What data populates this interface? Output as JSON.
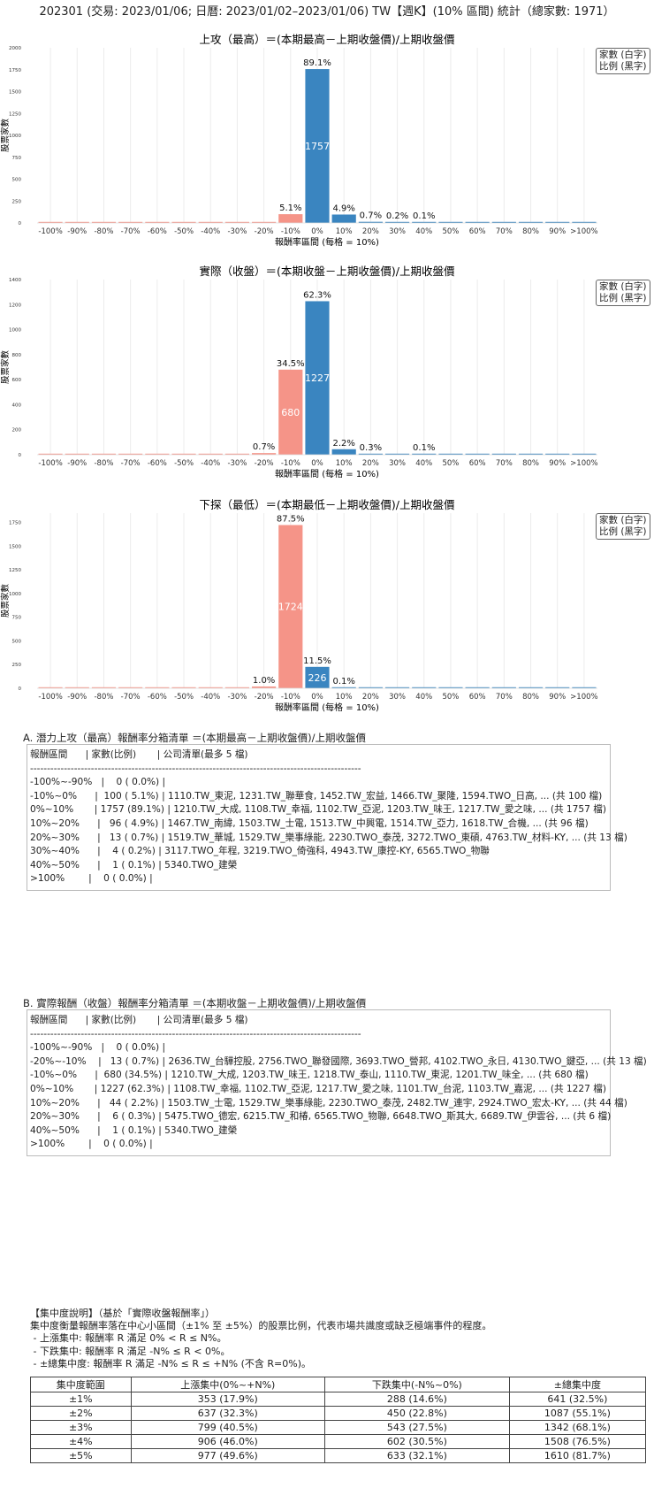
{
  "page_title": "202301 (交易: 2023/01/06; 日曆: 2023/01/02–2023/01/06) TW【週K】(10% 區間) 統計（總家數: 1971）",
  "legend": {
    "line1": "家數 (白字)",
    "line2": "比例 (黑字)"
  },
  "colors": {
    "positive": "#3a85c0",
    "negative": "#f59488"
  },
  "chart_data": [
    {
      "type": "bar",
      "title": "上攻（最高）＝(本期最高－上期收盤價)/上期收盤價",
      "xlabel": "報酬率區間 (每格 = 10%)",
      "ylabel": "股票家數",
      "categories": [
        "-100%",
        "-90%",
        "-80%",
        "-70%",
        "-60%",
        "-50%",
        "-40%",
        "-30%",
        "-20%",
        "-10%",
        "0%",
        "10%",
        "20%",
        "30%",
        "40%",
        "50%",
        "60%",
        "70%",
        "80%",
        "90%",
        ">100%"
      ],
      "values": [
        0,
        0,
        0,
        0,
        0,
        0,
        0,
        0,
        0,
        100,
        1757,
        96,
        13,
        4,
        1,
        0,
        0,
        0,
        0,
        0,
        0
      ],
      "labels": [
        "",
        "",
        "",
        "",
        "",
        "",
        "",
        "",
        "",
        "5.1%",
        "89.1%",
        "4.9%",
        "0.7%",
        "0.2%",
        "0.1%",
        "",
        "",
        "",
        "",
        "",
        ""
      ],
      "yticks": [
        0,
        250,
        500,
        750,
        1000,
        1250,
        1500,
        1750,
        2000
      ],
      "ylim": [
        0,
        2000
      ],
      "grid": "vertical"
    },
    {
      "type": "bar",
      "title": "實際（收盤）＝(本期收盤－上期收盤價)/上期收盤價",
      "xlabel": "報酬率區間 (每格 = 10%)",
      "ylabel": "股票家數",
      "categories": [
        "-100%",
        "-90%",
        "-80%",
        "-70%",
        "-60%",
        "-50%",
        "-40%",
        "-30%",
        "-20%",
        "-10%",
        "0%",
        "10%",
        "20%",
        "30%",
        "40%",
        "50%",
        "60%",
        "70%",
        "80%",
        "90%",
        ">100%"
      ],
      "values": [
        0,
        0,
        0,
        0,
        0,
        0,
        0,
        0,
        13,
        680,
        1227,
        44,
        6,
        0,
        1,
        0,
        0,
        0,
        0,
        0,
        0
      ],
      "labels": [
        "",
        "",
        "",
        "",
        "",
        "",
        "",
        "",
        "0.7%",
        "34.5%",
        "62.3%",
        "2.2%",
        "0.3%",
        "",
        "0.1%",
        "",
        "",
        "",
        "",
        "",
        ""
      ],
      "yticks": [
        0,
        200,
        400,
        600,
        800,
        1000,
        1200,
        1400
      ],
      "ylim": [
        0,
        1400
      ],
      "grid": "vertical"
    },
    {
      "type": "bar",
      "title": "下探（最低）＝(本期最低－上期收盤價)/上期收盤價",
      "xlabel": "報酬率區間 (每格 = 10%)",
      "ylabel": "股票家數",
      "categories": [
        "-100%",
        "-90%",
        "-80%",
        "-70%",
        "-60%",
        "-50%",
        "-40%",
        "-30%",
        "-20%",
        "-10%",
        "0%",
        "10%",
        "20%",
        "30%",
        "40%",
        "50%",
        "60%",
        "70%",
        "80%",
        "90%",
        ">100%"
      ],
      "values": [
        0,
        0,
        0,
        0,
        0,
        0,
        0,
        0,
        19,
        1724,
        226,
        2,
        0,
        0,
        0,
        0,
        0,
        0,
        0,
        0,
        0
      ],
      "labels": [
        "",
        "",
        "",
        "",
        "",
        "",
        "",
        "",
        "1.0%",
        "87.5%",
        "11.5%",
        "0.1%",
        "",
        "",
        "",
        "",
        "",
        "",
        "",
        "",
        ""
      ],
      "yticks": [
        0,
        250,
        500,
        750,
        1000,
        1250,
        1500,
        1750
      ],
      "ylim": [
        0,
        1850
      ],
      "grid": "vertical"
    }
  ],
  "section_a": {
    "title": "A. 潛力上攻（最高）報酬率分箱清單 ＝(本期最高－上期收盤價)/上期收盤價",
    "rows": [
      "報酬區間      | 家數(比例)       | 公司清單(最多 5 檔)",
      "--------------------------------------------------------------------------------------------------",
      "-100%~-90%   |    0 ( 0.0%) |",
      "-10%~0%      |  100 ( 5.1%) | 1110.TW_東泥, 1231.TW_聯華食, 1452.TW_宏益, 1466.TW_聚隆, 1594.TWO_日高, ... (共 100 檔)",
      "0%~10%       | 1757 (89.1%) | 1210.TW_大成, 1108.TW_幸福, 1102.TW_亞泥, 1203.TW_味王, 1217.TW_愛之味, ... (共 1757 檔)",
      "10%~20%      |   96 ( 4.9%) | 1467.TW_南緯, 1503.TW_士電, 1513.TW_中興電, 1514.TW_亞力, 1618.TW_合機, ... (共 96 檔)",
      "20%~30%      |   13 ( 0.7%) | 1519.TW_華城, 1529.TW_樂事綠能, 2230.TWO_泰茂, 3272.TWO_東碩, 4763.TW_材料-KY, ... (共 13 檔)",
      "30%~40%      |    4 ( 0.2%) | 3117.TWO_年程, 3219.TWO_倚強科, 4943.TW_康控-KY, 6565.TWO_物聯",
      "40%~50%      |    1 ( 0.1%) | 5340.TWO_建榮",
      ">100%        |    0 ( 0.0%) |"
    ]
  },
  "section_b": {
    "title": "B. 實際報酬（收盤）報酬率分箱清單 ＝(本期收盤－上期收盤價)/上期收盤價",
    "rows": [
      "報酬區間      | 家數(比例)       | 公司清單(最多 5 檔)",
      "--------------------------------------------------------------------------------------------------",
      "-100%~-90%   |    0 ( 0.0%) |",
      "-20%~-10%    |   13 ( 0.7%) | 2636.TW_台驊控股, 2756.TWO_聯發國際, 3693.TWO_營邦, 4102.TWO_永日, 4130.TWO_鍵亞, ... (共 13 檔)",
      "-10%~0%      |  680 (34.5%) | 1210.TW_大成, 1203.TW_味王, 1218.TW_泰山, 1110.TW_東泥, 1201.TW_味全, ... (共 680 檔)",
      "0%~10%       | 1227 (62.3%) | 1108.TW_幸福, 1102.TW_亞泥, 1217.TW_愛之味, 1101.TW_台泥, 1103.TW_嘉泥, ... (共 1227 檔)",
      "10%~20%      |   44 ( 2.2%) | 1503.TW_士電, 1529.TW_樂事綠能, 2230.TWO_泰茂, 2482.TW_連宇, 2924.TWO_宏太-KY, ... (共 44 檔)",
      "20%~30%      |    6 ( 0.3%) | 5475.TWO_德宏, 6215.TW_和椿, 6565.TWO_物聯, 6648.TWO_斯其大, 6689.TW_伊雲谷, ... (共 6 檔)",
      "40%~50%      |    1 ( 0.1%) | 5340.TWO_建榮",
      ">100%        |    0 ( 0.0%) |"
    ]
  },
  "concentration": {
    "heading": "【集中度說明】（基於「實際收盤報酬率」）",
    "lines": [
      "集中度衡量報酬率落在中心小區間（±1% 至 ±5%）的股票比例，代表市場共識度或缺乏極端事件的程度。",
      " - 上漲集中: 報酬率 R 滿足 0% < R ≤ N%。",
      " - 下跌集中: 報酬率 R 滿足 -N% ≤ R < 0%。",
      " - ±總集中度: 報酬率 R 滿足 -N% ≤ R ≤ +N% (不含 R=0%)。"
    ],
    "table": {
      "headers": [
        "集中度範圍",
        "上漲集中(0%~+N%)",
        "下跌集中(-N%~0%)",
        "±總集中度"
      ],
      "rows": [
        [
          "±1%",
          "353 (17.9%)",
          "288 (14.6%)",
          "641 (32.5%)"
        ],
        [
          "±2%",
          "637 (32.3%)",
          "450 (22.8%)",
          "1087 (55.1%)"
        ],
        [
          "±3%",
          "799 (40.5%)",
          "543 (27.5%)",
          "1342 (68.1%)"
        ],
        [
          "±4%",
          "906 (46.0%)",
          "602 (30.5%)",
          "1508 (76.5%)"
        ],
        [
          "±5%",
          "977 (49.6%)",
          "633 (32.1%)",
          "1610 (81.7%)"
        ]
      ]
    }
  }
}
